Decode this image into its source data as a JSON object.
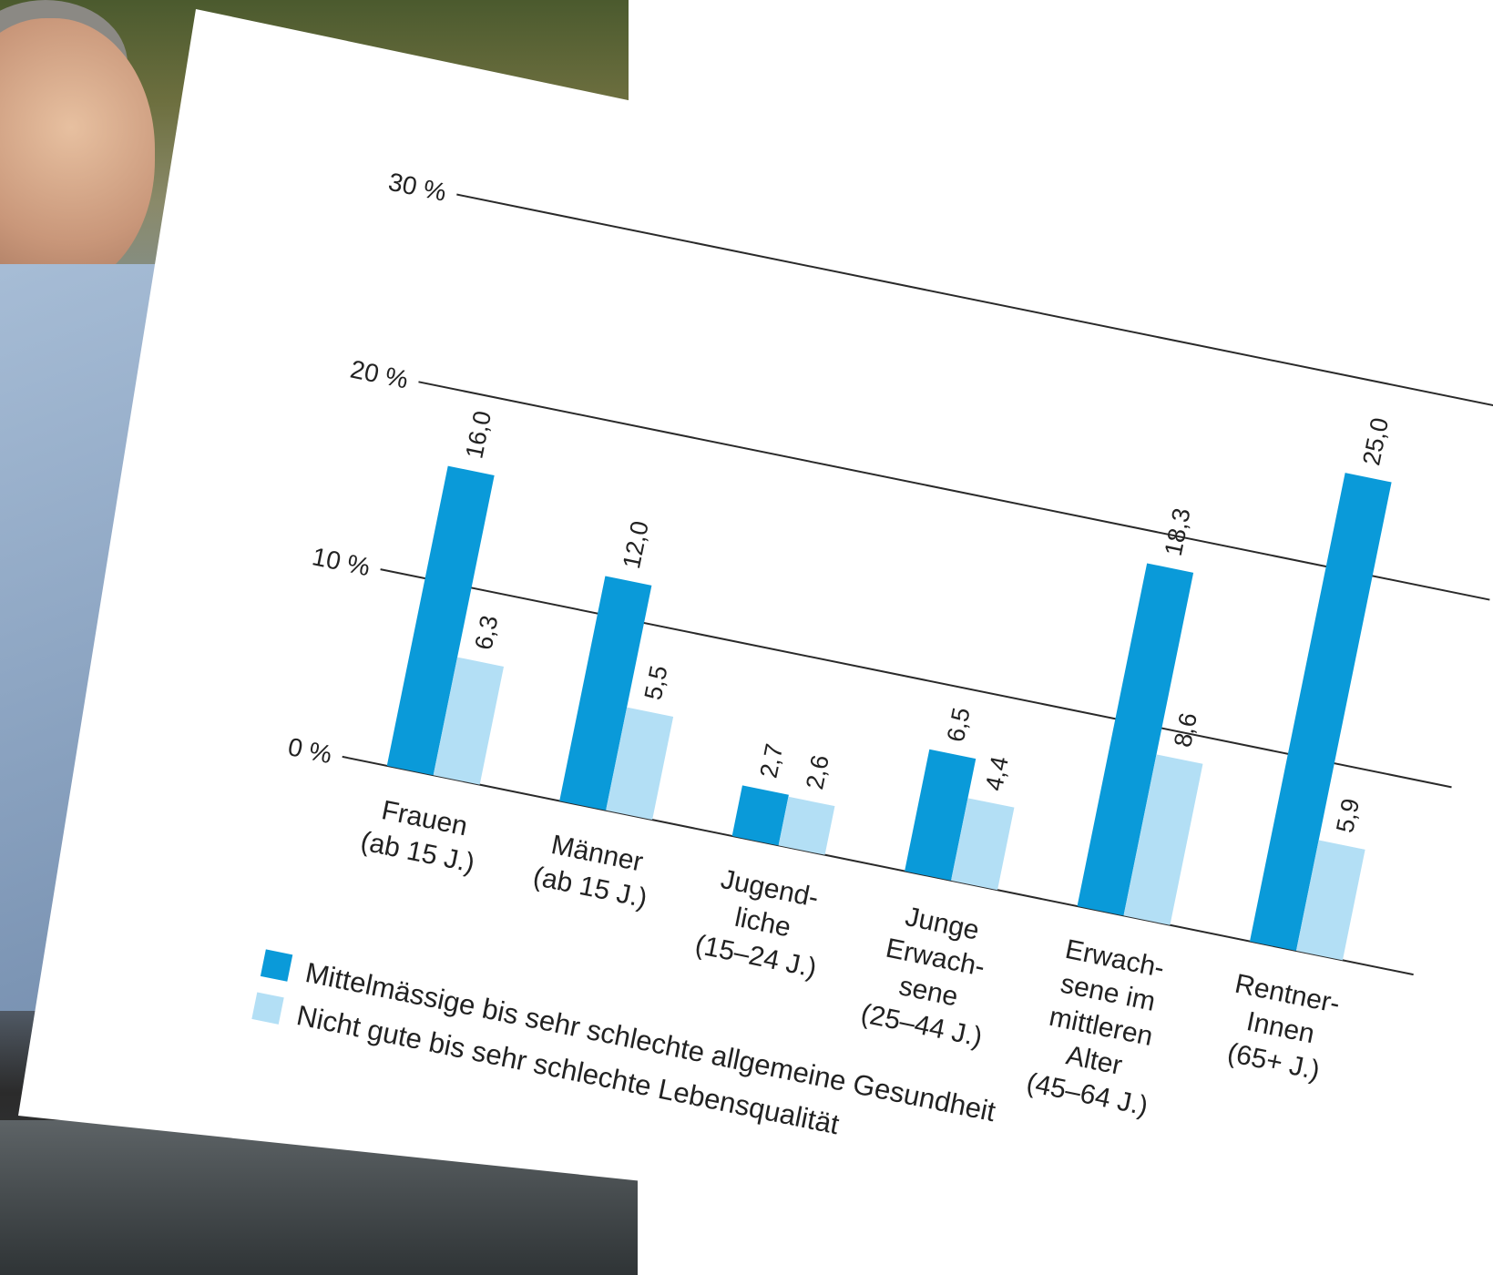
{
  "chart_data": {
    "type": "bar",
    "categories": [
      [
        "Frauen",
        "(ab 15 J.)"
      ],
      [
        "Männer",
        "(ab 15 J.)"
      ],
      [
        "Jugend-",
        "liche",
        "(15–24 J.)"
      ],
      [
        "Junge",
        "Erwach-",
        "sene",
        "(25–44 J.)"
      ],
      [
        "Erwach-",
        "sene im",
        "mittleren",
        "Alter",
        "(45–64 J.)"
      ],
      [
        "Rentner-",
        "Innen",
        "(65+ J.)"
      ]
    ],
    "series": [
      {
        "name": "Mittelmässige bis sehr schlechte allgemeine Gesundheit",
        "values": [
          16.0,
          12.0,
          2.7,
          6.5,
          18.3,
          25.0
        ],
        "labels": [
          "16,0",
          "12,0",
          "2,7",
          "6,5",
          "18,3",
          "25,0"
        ],
        "color": "#0a9ad9"
      },
      {
        "name": "Nicht gute bis sehr schlechte Lebensqualität",
        "values": [
          6.3,
          5.5,
          2.6,
          4.4,
          8.6,
          5.9
        ],
        "labels": [
          "6,3",
          "5,5",
          "2,6",
          "4,4",
          "8,6",
          "5,9"
        ],
        "color": "#b3dff5"
      }
    ],
    "yticks": [
      {
        "value": 0,
        "label": "0 %"
      },
      {
        "value": 10,
        "label": "10 %"
      },
      {
        "value": 20,
        "label": "20 %"
      },
      {
        "value": 30,
        "label": "30 %"
      }
    ],
    "ylim": [
      0,
      30
    ],
    "grid": true,
    "legend_position": "bottom-left"
  }
}
